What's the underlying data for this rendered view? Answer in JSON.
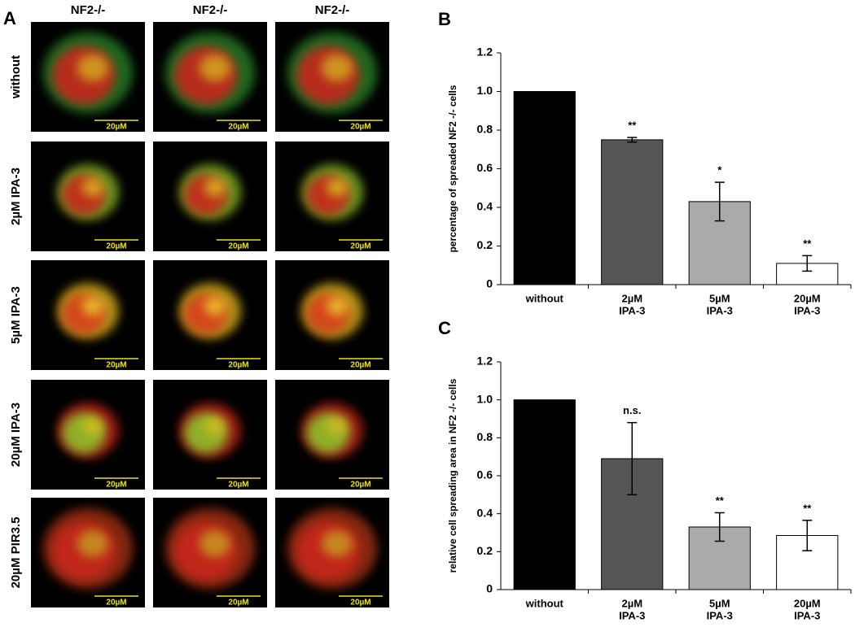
{
  "panel_a": {
    "label": "A",
    "columns": [
      "NF2-/-",
      "NF2-/-",
      "NF2-/-"
    ],
    "rows": [
      "without",
      "2µM IPA-3",
      "5µM IPA-3",
      "20µM IPA-3",
      "20µM PIR3.5"
    ],
    "scale_bar": "20µM"
  },
  "chart_data": [
    {
      "type": "bar",
      "panel_label": "B",
      "y_label": "percentage of spreaded NF2 -/- cells",
      "categories": [
        [
          "without"
        ],
        [
          "2µM",
          "IPA-3"
        ],
        [
          "5µM",
          "IPA-3"
        ],
        [
          "20µM",
          "IPA-3"
        ]
      ],
      "values": [
        1,
        0.75,
        0.43,
        0.11
      ],
      "errors": [
        null,
        0.012,
        0.1,
        0.04
      ],
      "annotations": [
        null,
        "**",
        "*",
        "**"
      ],
      "colors": [
        "#000000",
        "#555555",
        "#aaaaaa",
        "#ffffff"
      ],
      "ylim": [
        0,
        1.2
      ],
      "yticks": [
        0,
        0.2,
        0.4,
        0.6,
        0.8,
        {
          "value": 1,
          "label": "1.0"
        },
        1.2
      ]
    },
    {
      "type": "bar",
      "panel_label": "C",
      "y_label": "relative cell spreading area in NF2 -/- cells",
      "categories": [
        [
          "without"
        ],
        [
          "2µM",
          "IPA-3"
        ],
        [
          "5µM",
          "IPA-3"
        ],
        [
          "20µM",
          "IPA-3"
        ]
      ],
      "values": [
        1,
        0.69,
        0.33,
        0.285
      ],
      "errors": [
        null,
        0.19,
        0.075,
        0.08
      ],
      "annotations": [
        null,
        "n.s.",
        "**",
        "**"
      ],
      "colors": [
        "#000000",
        "#555555",
        "#aaaaaa",
        "#ffffff"
      ],
      "ylim": [
        0,
        1.2
      ],
      "yticks": [
        0,
        0.2,
        0.4,
        0.6,
        0.8,
        {
          "value": 1,
          "label": "1.0"
        },
        1.2
      ]
    }
  ]
}
